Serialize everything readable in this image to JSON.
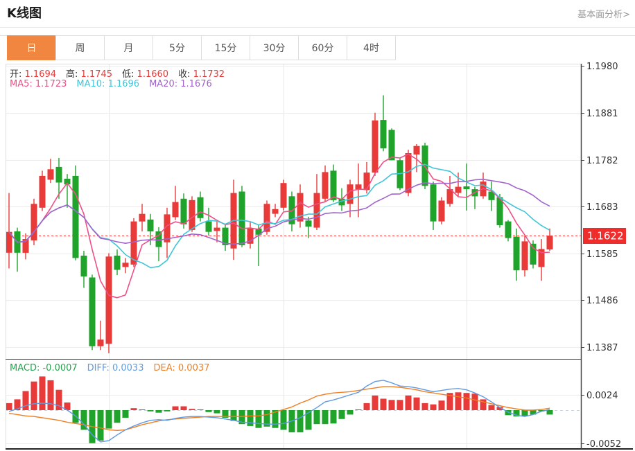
{
  "header": {
    "title": "K线图",
    "analysis_link": "基本面分析>"
  },
  "tabs": {
    "items": [
      "日",
      "周",
      "月",
      "5分",
      "15分",
      "30分",
      "60分",
      "4时"
    ],
    "active_index": 0
  },
  "ohlc_readout": [
    {
      "key": "open",
      "label": "开:",
      "value": "1.1694"
    },
    {
      "key": "high",
      "label": "高:",
      "value": "1.1745"
    },
    {
      "key": "low",
      "label": "低:",
      "value": "1.1660"
    },
    {
      "key": "close",
      "label": "收:",
      "value": "1.1732"
    }
  ],
  "ma_readout": [
    {
      "key": "ma5",
      "label": "MA5:",
      "value": "1.1723",
      "color": "#ef4f86"
    },
    {
      "key": "ma10",
      "label": "MA10:",
      "value": "1.1696",
      "color": "#3fc5d8"
    },
    {
      "key": "ma20",
      "label": "MA20:",
      "value": "1.1676",
      "color": "#a263cc"
    }
  ],
  "macd_readout": [
    {
      "key": "macd",
      "label": "MACD:",
      "value": "-0.0007",
      "color": "#23a34c"
    },
    {
      "key": "diff",
      "label": "DIFF:",
      "value": "0.0033",
      "color": "#5e9ae2"
    },
    {
      "key": "dea",
      "label": "DEA:",
      "value": "0.0037",
      "color": "#f07d21"
    }
  ],
  "colors": {
    "up": "#e83a38",
    "down": "#1fa32b",
    "ma5": "#ef4f86",
    "ma10": "#3fc5d8",
    "ma20": "#a263cc",
    "diff": "#5e9ae2",
    "dea": "#f07d21",
    "badge_bg": "#ef2d2d",
    "badge_text": "#ffffff",
    "dotted_line": "#f04040",
    "zero_dash": "#c9d4da",
    "grid": "#ececec",
    "vgrid": "#e6e6e6",
    "frame_light": "#dddddd",
    "axis_dark": "#444444",
    "divider_dark": "#333333",
    "tick_text": "#333333",
    "value_red": "#e23b3b",
    "tab_active_bg": "#f0863f"
  },
  "chart_data": {
    "type": "candlestick+macd",
    "title": "K线图",
    "legend": [
      "MA5",
      "MA10",
      "MA20",
      "MACD",
      "DIFF",
      "DEA"
    ],
    "grid": true,
    "price_axis": {
      "ticks": [
        "1.1980",
        "1.1881",
        "1.1782",
        "1.1683",
        "1.1585",
        "1.1486",
        "1.1387"
      ],
      "range": [
        1.1387,
        1.198
      ],
      "last_price": "1.1622",
      "dotted_line_value": 1.1622
    },
    "macd_axis": {
      "ticks": [
        "0.0024",
        "-0.0052"
      ],
      "range": [
        -0.0052,
        0.0024
      ]
    },
    "v_grid_index": [
      12,
      33,
      55
    ],
    "ma_periods": [
      5,
      10,
      20
    ],
    "candles": [
      [
        1.1586,
        1.1712,
        1.1553,
        1.163
      ],
      [
        1.1631,
        1.1639,
        1.1546,
        1.1586
      ],
      [
        1.1586,
        1.1627,
        1.1572,
        1.1615
      ],
      [
        1.1612,
        1.17,
        1.1602,
        1.1689
      ],
      [
        1.1681,
        1.1759,
        1.1674,
        1.1748
      ],
      [
        1.174,
        1.1784,
        1.1733,
        1.1762
      ],
      [
        1.1767,
        1.1786,
        1.17,
        1.1734
      ],
      [
        1.1742,
        1.1752,
        1.1681,
        1.173
      ],
      [
        1.1748,
        1.177,
        1.157,
        1.1575
      ],
      [
        1.158,
        1.159,
        1.1512,
        1.1536
      ],
      [
        1.1534,
        1.154,
        1.1381,
        1.1389
      ],
      [
        1.1389,
        1.1443,
        1.1381,
        1.1403
      ],
      [
        1.1394,
        1.1585,
        1.1374,
        1.1578
      ],
      [
        1.158,
        1.1593,
        1.1539,
        1.155
      ],
      [
        1.1556,
        1.1575,
        1.1543,
        1.1565
      ],
      [
        1.1561,
        1.1659,
        1.1556,
        1.1652
      ],
      [
        1.1652,
        1.1689,
        1.1631,
        1.1668
      ],
      [
        1.1656,
        1.1668,
        1.1602,
        1.1631
      ],
      [
        1.1631,
        1.164,
        1.1568,
        1.1598
      ],
      [
        1.1608,
        1.1681,
        1.1575,
        1.1667
      ],
      [
        1.1661,
        1.1727,
        1.1655,
        1.1693
      ],
      [
        1.17,
        1.1711,
        1.1637,
        1.1646
      ],
      [
        1.1634,
        1.1705,
        1.163,
        1.1697
      ],
      [
        1.1703,
        1.1715,
        1.1652,
        1.1659
      ],
      [
        1.1652,
        1.1681,
        1.1622,
        1.163
      ],
      [
        1.1632,
        1.1652,
        1.1608,
        1.1639
      ],
      [
        1.1639,
        1.1645,
        1.159,
        1.1602
      ],
      [
        1.1595,
        1.174,
        1.1571,
        1.1712
      ],
      [
        1.1715,
        1.1727,
        1.1598,
        1.1602
      ],
      [
        1.1605,
        1.1652,
        1.1595,
        1.1637
      ],
      [
        1.1637,
        1.1645,
        1.1558,
        1.1624
      ],
      [
        1.163,
        1.1696,
        1.1624,
        1.1689
      ],
      [
        1.1668,
        1.1689,
        1.1661,
        1.1678
      ],
      [
        1.1681,
        1.174,
        1.1675,
        1.1733
      ],
      [
        1.1705,
        1.1715,
        1.1631,
        1.1646
      ],
      [
        1.1652,
        1.173,
        1.1639,
        1.1712
      ],
      [
        1.1654,
        1.1662,
        1.1617,
        1.1641
      ],
      [
        1.1639,
        1.1752,
        1.1634,
        1.1712
      ],
      [
        1.17,
        1.177,
        1.1693,
        1.1756
      ],
      [
        1.1759,
        1.1772,
        1.1693,
        1.1697
      ],
      [
        1.17,
        1.1722,
        1.1674,
        1.1686
      ],
      [
        1.1689,
        1.174,
        1.1661,
        1.173
      ],
      [
        1.172,
        1.1774,
        1.1661,
        1.173
      ],
      [
        1.1718,
        1.1777,
        1.1711,
        1.1755
      ],
      [
        1.1755,
        1.1881,
        1.1748,
        1.1865
      ],
      [
        1.1866,
        1.1918,
        1.18,
        1.1806
      ],
      [
        1.1845,
        1.1848,
        1.1781,
        1.1781
      ],
      [
        1.1781,
        1.1785,
        1.1718,
        1.1722
      ],
      [
        1.1712,
        1.1803,
        1.1705,
        1.1796
      ],
      [
        1.1793,
        1.1815,
        1.1756,
        1.1811
      ],
      [
        1.1812,
        1.1818,
        1.172,
        1.1727
      ],
      [
        1.173,
        1.1736,
        1.1634,
        1.1652
      ],
      [
        1.1652,
        1.1703,
        1.1646,
        1.1696
      ],
      [
        1.1689,
        1.1748,
        1.1683,
        1.172
      ],
      [
        1.1712,
        1.1755,
        1.1705,
        1.1725
      ],
      [
        1.1726,
        1.1774,
        1.1675,
        1.172
      ],
      [
        1.172,
        1.1725,
        1.1678,
        1.1705
      ],
      [
        1.1705,
        1.1755,
        1.17,
        1.1736
      ],
      [
        1.1715,
        1.1736,
        1.1674,
        1.1697
      ],
      [
        1.1703,
        1.171,
        1.1639,
        1.1644
      ],
      [
        1.1652,
        1.1655,
        1.161,
        1.1617
      ],
      [
        1.162,
        1.1637,
        1.1527,
        1.1549
      ],
      [
        1.1549,
        1.1622,
        1.1536,
        1.161
      ],
      [
        1.1605,
        1.1612,
        1.1553,
        1.1561
      ],
      [
        1.1556,
        1.1615,
        1.1527,
        1.1594
      ],
      [
        1.1593,
        1.1637,
        1.159,
        1.1622
      ]
    ],
    "macd": {
      "hist": [
        0.0011,
        0.0017,
        0.003,
        0.0045,
        0.0053,
        0.0047,
        0.0032,
        0.0012,
        -0.002,
        -0.0031,
        -0.0052,
        -0.0048,
        -0.0029,
        -0.002,
        -0.0012,
        0.0003,
        0.0001,
        -0.0002,
        -0.0004,
        -0.0002,
        0.0006,
        0.0006,
        0.0002,
        0.0001,
        -0.0003,
        -0.0005,
        -0.0012,
        -0.0017,
        -0.0022,
        -0.0025,
        -0.0028,
        -0.0026,
        -0.0028,
        -0.0031,
        -0.0035,
        -0.0035,
        -0.0031,
        -0.0022,
        -0.0022,
        -0.0021,
        -0.0014,
        -0.0007,
        0.0001,
        0.0011,
        0.0023,
        0.0018,
        0.0016,
        0.0016,
        0.0023,
        0.002,
        0.0011,
        0.0009,
        0.0015,
        0.0027,
        0.0028,
        0.0027,
        0.0026,
        0.0017,
        0.0008,
        0.0005,
        -0.0008,
        -0.001,
        -0.0009,
        -0.0007,
        -0.0002,
        -0.0007
      ],
      "diff": [
        -0.0002,
        0.0002,
        0.0007,
        0.001,
        0.0011,
        0.001,
        0.0007,
        0.0,
        -0.0009,
        -0.0022,
        -0.0039,
        -0.005,
        -0.0048,
        -0.0039,
        -0.0031,
        -0.0025,
        -0.002,
        -0.0016,
        -0.0015,
        -0.0016,
        -0.0013,
        -0.0011,
        -0.001,
        -0.001,
        -0.0011,
        -0.0012,
        -0.0014,
        -0.0016,
        -0.0019,
        -0.002,
        -0.0021,
        -0.0022,
        -0.0022,
        -0.0021,
        -0.0017,
        -0.0012,
        -0.0004,
        0.0004,
        0.0013,
        0.0016,
        0.002,
        0.0024,
        0.0028,
        0.0038,
        0.0045,
        0.0047,
        0.0043,
        0.0038,
        0.0037,
        0.0035,
        0.0032,
        0.0029,
        0.0031,
        0.0033,
        0.0034,
        0.0032,
        0.0027,
        0.0021,
        0.0013,
        0.0004,
        -0.0003,
        -0.0008,
        -0.001,
        -0.0007,
        -0.0002,
        0.0001
      ],
      "dea": [
        -0.0005,
        -0.0007,
        -0.0009,
        -0.001,
        -0.0012,
        -0.0014,
        -0.0016,
        -0.0019,
        -0.0021,
        -0.0023,
        -0.0026,
        -0.0028,
        -0.0031,
        -0.0032,
        -0.0031,
        -0.0027,
        -0.0023,
        -0.002,
        -0.0017,
        -0.0015,
        -0.0014,
        -0.0013,
        -0.0012,
        -0.0011,
        -0.001,
        -0.001,
        -0.001,
        -0.001,
        -0.001,
        -0.0009,
        -0.0009,
        -0.0007,
        -0.0003,
        0.0001,
        0.0005,
        0.0011,
        0.0016,
        0.0022,
        0.0025,
        0.0027,
        0.0028,
        0.0029,
        0.0031,
        0.0033,
        0.0035,
        0.0037,
        0.0037,
        0.0036,
        0.0034,
        0.0032,
        0.0029,
        0.0027,
        0.0025,
        0.0023,
        0.0021,
        0.0019,
        0.0016,
        0.0013,
        0.001,
        0.0007,
        0.0004,
        0.0002,
        0.0,
        0.0,
        0.0001,
        0.0003
      ]
    }
  }
}
